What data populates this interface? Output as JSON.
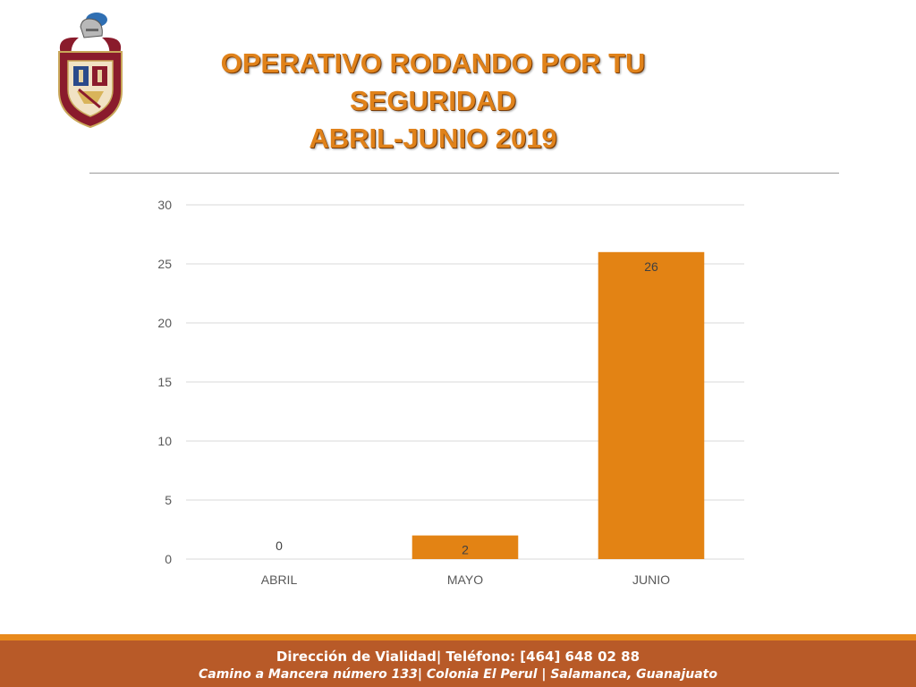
{
  "slide": {
    "title_lines": [
      "OPERATIVO RODANDO POR TU",
      "SEGURIDAD",
      "ABRIL-JUNIO 2019"
    ]
  },
  "logo": {
    "icon": "coat-of-arms-icon"
  },
  "colors": {
    "title": "#e0821a",
    "bar": "#e38314",
    "footer_bg": "#b85a28",
    "footer_accent": "#e8891c",
    "grid": "#d9d9d9",
    "axis_text": "#595959"
  },
  "chart_data": {
    "type": "bar",
    "categories": [
      "ABRIL",
      "MAYO",
      "JUNIO"
    ],
    "values": [
      0,
      2,
      26
    ],
    "data_labels": [
      "0",
      "2",
      "26"
    ],
    "yticks": [
      0,
      5,
      10,
      15,
      20,
      25,
      30
    ],
    "ylim": [
      0,
      30
    ],
    "grid": true,
    "legend": "none"
  },
  "footer": {
    "line1": "Dirección de Vialidad| Teléfono: [464] 648 02 88",
    "line2": "Camino a Mancera número 133| Colonia El Perul | Salamanca, Guanajuato"
  }
}
